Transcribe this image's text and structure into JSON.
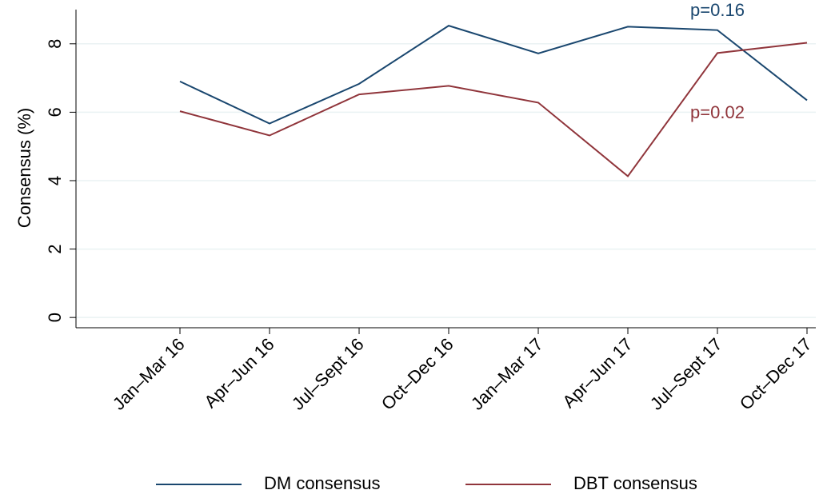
{
  "chart_data": {
    "type": "line",
    "y_label": "Consensus (%)",
    "categories": [
      "Jan–Mar 16",
      "Apr–Jun 16",
      "Jul–Sept 16",
      "Oct–Dec 16",
      "Jan–Mar 17",
      "Apr–Jun 17",
      "Jul–Sept 17",
      "Oct–Dec 17"
    ],
    "series": [
      {
        "name": "DM consensus",
        "color": "#1a476f",
        "values": [
          6.9,
          5.67,
          6.83,
          8.53,
          7.72,
          8.5,
          8.4,
          6.35
        ]
      },
      {
        "name": "DBT consensus",
        "color": "#90353b",
        "values": [
          6.03,
          5.32,
          6.52,
          6.77,
          6.28,
          4.13,
          7.73,
          8.03
        ]
      }
    ],
    "annotations": [
      {
        "text": "p=0.16",
        "color": "#1a476f"
      },
      {
        "text": "p=0.02",
        "color": "#90353b"
      }
    ],
    "ylim": [
      -0.3,
      9
    ],
    "yticks": [
      0,
      2,
      4,
      6,
      8
    ],
    "grid": true
  }
}
